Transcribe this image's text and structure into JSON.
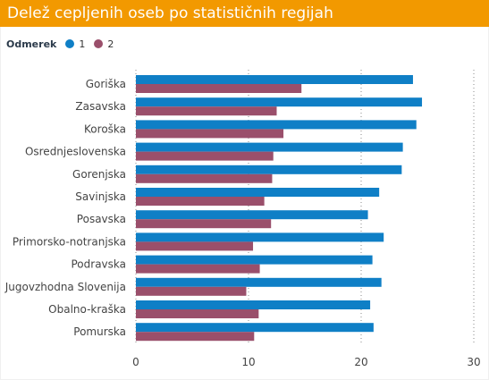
{
  "title": "Delež cepljenih oseb po statističnih regijah",
  "colors": {
    "title_bg": "#f29900",
    "series_1": "#0f7fc6",
    "series_2": "#9a4f6b",
    "gridline": "#8a8a8a"
  },
  "legend": {
    "title": "Odmerek",
    "items": [
      {
        "label": "1",
        "color": "#0f7fc6"
      },
      {
        "label": "2",
        "color": "#9a4f6b"
      }
    ]
  },
  "chart_data": {
    "type": "bar",
    "orientation": "horizontal",
    "categories": [
      "Goriška",
      "Zasavska",
      "Koroška",
      "Osrednjeslovenska",
      "Gorenjska",
      "Savinjska",
      "Posavska",
      "Primorsko-notranjska",
      "Podravska",
      "Jugovzhodna Slovenija",
      "Obalno-kraška",
      "Pomurska"
    ],
    "series": [
      {
        "name": "1",
        "values": [
          24.6,
          25.4,
          24.9,
          23.7,
          23.6,
          21.6,
          20.6,
          22.0,
          21.0,
          21.8,
          20.8,
          21.1
        ]
      },
      {
        "name": "2",
        "values": [
          14.7,
          12.5,
          13.1,
          12.2,
          12.1,
          11.4,
          12.0,
          10.4,
          11.0,
          9.8,
          10.9,
          10.5
        ]
      }
    ],
    "xlim": [
      0,
      30
    ],
    "xticks": [
      0,
      10,
      20,
      30
    ],
    "grid": "vertical dotted",
    "legend_position": "top-left"
  }
}
